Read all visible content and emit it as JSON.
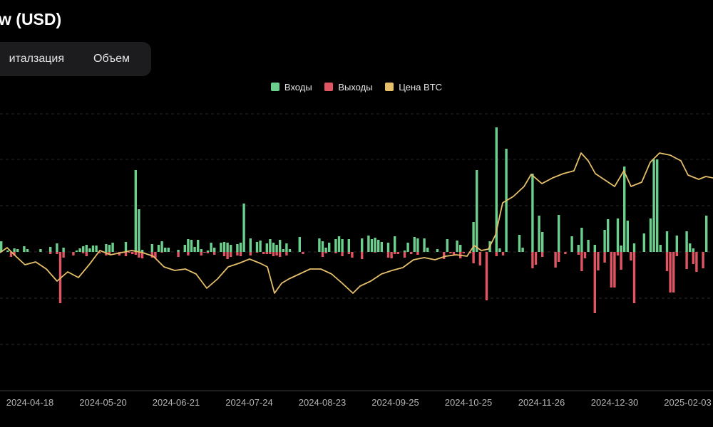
{
  "title": "w (USD)",
  "tabs": [
    {
      "label": "италзация",
      "active": false
    },
    {
      "label": "Объем",
      "active": false
    }
  ],
  "colors": {
    "inflow": "#6ccf8d",
    "outflow": "#e05561",
    "price": "#e6bf6a",
    "background": "#000000",
    "grid": "#2a2a2a"
  },
  "chart_data": {
    "type": "bar",
    "legend_position": "top-center",
    "grid": true,
    "legend": [
      {
        "name": "Входы",
        "color": "#6ccf8d"
      },
      {
        "name": "Выходы",
        "color": "#e05561"
      },
      {
        "name": "Цена BTC",
        "color": "#e6bf6a"
      }
    ],
    "x_ticks": [
      "2024-04-18",
      "2024-05-20",
      "2024-06-21",
      "2024-07-24",
      "2024-08-23",
      "2024-09-25",
      "2024-10-25",
      "2024-11-26",
      "2024-12-30",
      "2025-02-03"
    ],
    "series": [
      {
        "name": "Входы",
        "values": [
          24,
          0,
          0,
          12,
          0,
          0,
          0,
          0,
          0,
          0,
          0,
          0,
          0,
          0,
          0,
          0,
          0,
          0,
          0,
          0,
          0,
          0,
          0,
          0,
          0,
          0,
          0,
          0,
          0,
          0,
          0,
          10,
          0,
          0,
          0,
          3,
          0,
          0,
          0,
          0,
          0,
          0,
          0,
          0,
          34,
          26,
          28,
          30,
          20,
          20,
          28,
          36,
          0,
          0,
          0,
          0,
          0,
          0,
          0,
          0,
          5,
          40,
          0,
          0,
          0,
          115,
          60,
          20,
          26,
          16,
          0,
          0,
          0,
          0,
          0,
          0,
          0,
          0,
          0,
          0,
          0,
          0,
          0,
          0,
          0,
          0,
          0,
          0,
          0,
          0,
          0,
          0,
          0,
          0,
          0,
          3,
          4,
          3,
          8,
          0,
          0,
          8,
          8,
          0,
          20,
          40,
          34,
          23,
          0,
          26,
          40,
          0,
          60,
          0,
          0,
          0,
          0,
          0,
          0,
          0,
          0,
          0,
          0,
          0,
          0,
          0,
          0,
          0,
          20,
          14,
          0,
          0,
          0,
          0,
          0,
          0,
          0,
          0,
          0,
          0,
          0,
          0,
          0,
          0,
          0,
          0,
          0,
          0,
          0,
          0,
          0,
          10,
          4,
          10,
          14,
          24,
          12,
          24,
          6,
          12,
          8,
          14,
          30,
          22,
          0,
          0,
          0,
          0,
          0,
          0,
          0,
          0,
          0,
          0,
          0,
          0,
          0,
          0,
          0,
          0,
          0,
          0,
          30,
          0,
          0,
          0,
          0,
          0,
          0,
          0,
          0,
          0,
          0,
          0,
          0,
          3,
          0,
          0,
          0,
          0,
          0,
          0,
          0,
          40,
          44,
          0,
          0,
          0,
          0,
          0,
          3,
          10,
          0,
          4,
          16,
          28,
          26,
          0,
          8,
          14,
          0,
          0,
          0,
          0,
          0,
          0,
          0,
          0,
          0,
          0,
          0,
          0,
          0,
          0,
          0,
          0,
          0,
          0,
          0,
          0,
          0,
          0,
          0,
          0,
          0,
          0,
          0,
          0,
          0,
          0,
          0,
          0,
          0,
          0,
          8,
          0,
          0,
          0,
          0,
          0,
          0,
          0,
          0,
          0,
          0,
          0,
          0,
          0,
          0,
          0,
          0,
          0,
          0,
          0,
          0,
          0,
          0,
          0,
          0,
          0,
          0,
          0,
          0,
          0,
          0,
          0,
          12,
          14,
          0,
          0,
          0,
          0,
          0,
          0,
          0,
          0,
          0,
          0,
          0,
          0,
          10,
          8,
          0,
          0,
          0,
          0,
          0,
          0,
          0,
          0,
          0,
          0,
          0,
          0,
          0,
          0,
          0,
          0,
          0,
          0,
          0,
          0,
          0,
          0,
          0,
          0,
          0,
          0,
          0,
          0,
          0,
          0,
          0,
          0,
          0,
          0,
          0,
          0,
          0,
          0,
          0,
          0,
          0,
          0,
          0,
          0,
          0,
          0,
          0,
          0,
          0,
          0,
          0,
          0,
          0,
          0,
          0,
          0,
          0,
          0
        ]
      },
      {
        "name": "Выходы",
        "values": []
      }
    ],
    "notes": ""
  }
}
